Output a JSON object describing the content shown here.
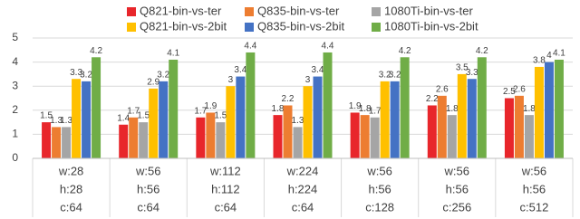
{
  "chart_data": {
    "type": "bar",
    "categories": [
      [
        "w:28",
        "h:28",
        "c:64"
      ],
      [
        "w:56",
        "h:56",
        "c:64"
      ],
      [
        "w:112",
        "h:112",
        "c:64"
      ],
      [
        "w:224",
        "h:224",
        "c:64"
      ],
      [
        "w:56",
        "h:56",
        "c:128"
      ],
      [
        "w:56",
        "h:56",
        "c:256"
      ],
      [
        "w:56",
        "h:56",
        "c:512"
      ]
    ],
    "series": [
      {
        "name": "Q821-bin-vs-ter",
        "color": "#e8262b",
        "values": [
          1.5,
          1.4,
          1.7,
          1.8,
          1.9,
          2.2,
          2.5
        ]
      },
      {
        "name": "Q835-bin-vs-ter",
        "color": "#ed7d31",
        "values": [
          1.3,
          1.7,
          1.9,
          2.2,
          1.8,
          2.6,
          2.6
        ]
      },
      {
        "name": "1080Ti-bin-vs-ter",
        "color": "#a5a5a5",
        "values": [
          1.3,
          1.5,
          1.5,
          1.3,
          1.7,
          1.8,
          1.8
        ]
      },
      {
        "name": "Q821-bin-vs-2bit",
        "color": "#ffc000",
        "values": [
          3.3,
          2.9,
          3,
          3,
          3.2,
          3.5,
          3.8
        ]
      },
      {
        "name": "Q835-bin-vs-2bit",
        "color": "#4472c4",
        "values": [
          3.2,
          3.2,
          3.4,
          3.4,
          3.2,
          3.3,
          4
        ]
      },
      {
        "name": "1080Ti-bin-vs-2bit",
        "color": "#70ad47",
        "values": [
          4.2,
          4.1,
          4.4,
          4.4,
          4.2,
          4.2,
          4.1
        ]
      }
    ],
    "ylim": [
      0,
      5
    ],
    "yticks": [
      0,
      1,
      2,
      3,
      4,
      5
    ],
    "grid": true
  }
}
